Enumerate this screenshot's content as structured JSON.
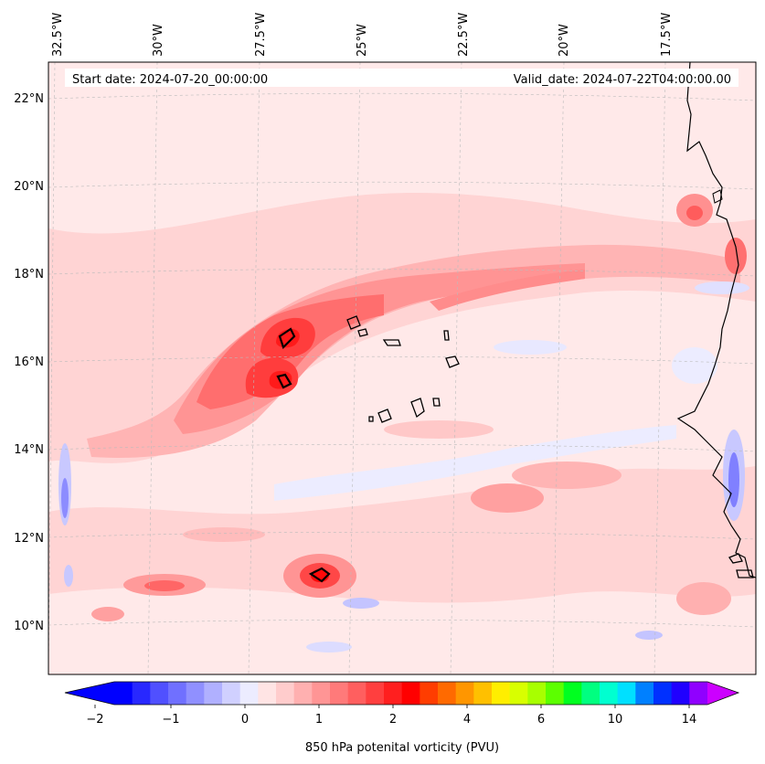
{
  "header": {
    "start_date": "Start date: 2024-07-20_00:00:00",
    "valid_date": "Valid_date: 2024-07-22T04:00:00.00"
  },
  "map": {
    "projection": "conic",
    "lon_ticks": [
      "32.5°W",
      "30°W",
      "27.5°W",
      "25°W",
      "22.5°W",
      "20°W",
      "17.5°W"
    ],
    "lat_ticks": [
      "22°N",
      "20°N",
      "18°N",
      "16°N",
      "14°N",
      "12°N",
      "10°N"
    ],
    "gridlines": true,
    "background_color": "#ffe6e6"
  },
  "colorbar": {
    "label": "850 hPa potenital vorticity (PVU)",
    "tick_labels": [
      "−2",
      "−1",
      "0",
      "1",
      "2",
      "4",
      "6",
      "10",
      "14"
    ],
    "extend": "both",
    "colors": [
      "#0000ff",
      "#2828ff",
      "#5050ff",
      "#7070ff",
      "#9090ff",
      "#b0b0ff",
      "#d0d0ff",
      "#ececff",
      "#ffe4e4",
      "#ffcccc",
      "#ffb0b0",
      "#ff9595",
      "#ff7a7a",
      "#ff5f5f",
      "#ff3f3f",
      "#ff1f1f",
      "#ff0000",
      "#ff3d00",
      "#ff6a00",
      "#ff9600",
      "#ffc000",
      "#ffee00",
      "#d8ff00",
      "#a8ff00",
      "#5cff00",
      "#00ff20",
      "#00ff80",
      "#00ffd0",
      "#00e0ff",
      "#0080ff",
      "#0030ff",
      "#2000ff",
      "#9000ff"
    ],
    "extend_low_color": "#0000ff",
    "extend_high_color": "#cc00ff"
  }
}
